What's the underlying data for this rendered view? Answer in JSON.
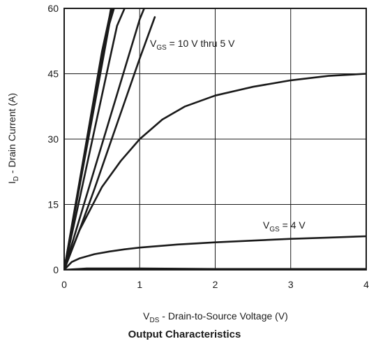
{
  "chart_data": {
    "type": "line",
    "title": "Output Characteristics",
    "xlabel": {
      "base": "V",
      "sub": "DS",
      "rest": " - Drain-to-Source Voltage (V)"
    },
    "ylabel": {
      "base": "I",
      "sub": "D",
      "rest": " - Drain Current (A)"
    },
    "xlim": [
      0,
      4
    ],
    "ylim": [
      0,
      60
    ],
    "xticks": [
      "0",
      "1",
      "2",
      "3",
      "4"
    ],
    "yticks": [
      "0",
      "15",
      "30",
      "45",
      "60"
    ],
    "grid": true,
    "annotations": [
      {
        "base": "V",
        "sub": "GS",
        "rest": " = 10 V thru 5 V"
      },
      {
        "base": "V",
        "sub": "GS",
        "rest": " = 4 V"
      }
    ],
    "series": [
      {
        "x": [
          0,
          0.1,
          0.2,
          0.3,
          0.4,
          0.5,
          0.6,
          0.62
        ],
        "y": [
          0,
          10,
          20,
          30,
          40,
          50,
          58,
          60
        ]
      },
      {
        "x": [
          0,
          0.1,
          0.2,
          0.3,
          0.4,
          0.5,
          0.6,
          0.64
        ],
        "y": [
          0,
          9.7,
          19.4,
          29,
          38.7,
          48.4,
          58,
          60
        ]
      },
      {
        "x": [
          0,
          0.1,
          0.2,
          0.3,
          0.4,
          0.5,
          0.6,
          0.66
        ],
        "y": [
          0,
          9.4,
          18.8,
          28.2,
          37.6,
          47,
          56.5,
          60
        ]
      },
      {
        "x": [
          0,
          0.1,
          0.2,
          0.3,
          0.4,
          0.5,
          0.6,
          0.7,
          0.8
        ],
        "y": [
          0,
          8,
          16,
          24,
          32,
          40,
          48,
          56,
          60
        ]
      },
      {
        "x": [
          0,
          0.2,
          0.4,
          0.6,
          0.8,
          1.0,
          1.06
        ],
        "y": [
          0,
          11.5,
          23,
          34.5,
          46,
          57.5,
          60
        ]
      },
      {
        "x": [
          0,
          0.2,
          0.4,
          0.6,
          0.8,
          1.0,
          1.2
        ],
        "y": [
          0,
          9,
          18.5,
          28.5,
          38.5,
          48.5,
          58
        ]
      },
      {
        "x": [
          0,
          0.1,
          0.2,
          0.35,
          0.5,
          0.75,
          1.0,
          1.3,
          1.6,
          2.0,
          2.5,
          3.0,
          3.5,
          4.0
        ],
        "y": [
          0,
          4.5,
          9,
          14,
          19,
          25,
          30,
          34.5,
          37.5,
          40,
          42,
          43.5,
          44.5,
          45
        ]
      },
      {
        "x": [
          0,
          0.1,
          0.2,
          0.4,
          0.6,
          0.8,
          1.0,
          1.5,
          2.0,
          2.5,
          3.0,
          3.5,
          4.0
        ],
        "y": [
          0,
          1.8,
          2.6,
          3.6,
          4.2,
          4.7,
          5.1,
          5.8,
          6.3,
          6.7,
          7.1,
          7.4,
          7.7
        ]
      },
      {
        "x": [
          0,
          0.3,
          1.0,
          2.0,
          3.0,
          4.0
        ],
        "y": [
          0,
          0.3,
          0.3,
          0.2,
          0.2,
          0.2
        ]
      }
    ]
  }
}
